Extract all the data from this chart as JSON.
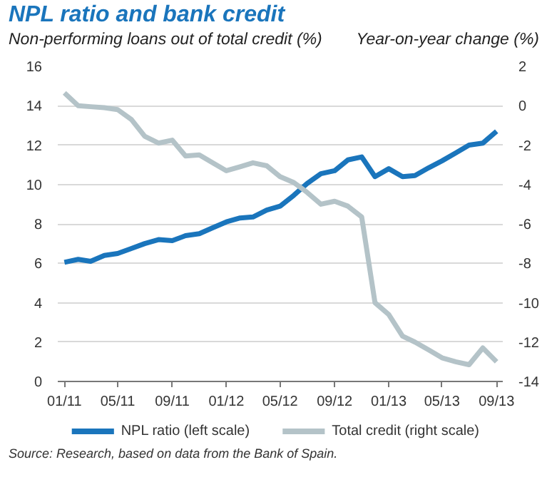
{
  "chart_data": {
    "type": "line",
    "title": "NPL ratio and bank credit",
    "ylabel": "Non-performing loans out of total credit (%)",
    "y2label": "Year-on-year change (%)",
    "x": [
      "2011-01",
      "2011-02",
      "2011-03",
      "2011-04",
      "2011-05",
      "2011-06",
      "2011-07",
      "2011-08",
      "2011-09",
      "2011-10",
      "2011-11",
      "2011-12",
      "2012-01",
      "2012-02",
      "2012-03",
      "2012-04",
      "2012-05",
      "2012-06",
      "2012-07",
      "2012-08",
      "2012-09",
      "2012-10",
      "2012-11",
      "2012-12",
      "2013-01",
      "2013-02",
      "2013-03",
      "2013-04",
      "2013-05",
      "2013-06",
      "2013-07",
      "2013-08",
      "2013-09"
    ],
    "xlim": [
      "2010-12-17",
      "2013-09-15"
    ],
    "xticks": [
      {
        "value": "2011-01",
        "label": "01/11"
      },
      {
        "value": "2011-05",
        "label": "05/11"
      },
      {
        "value": "2011-09",
        "label": "09/11"
      },
      {
        "value": "2012-01",
        "label": "01/12"
      },
      {
        "value": "2012-05",
        "label": "05/12"
      },
      {
        "value": "2012-09",
        "label": "09/12"
      },
      {
        "value": "2013-01",
        "label": "01/13"
      },
      {
        "value": "2013-05",
        "label": "05/13"
      },
      {
        "value": "2013-09",
        "label": "09/13"
      }
    ],
    "ylim": [
      0,
      16
    ],
    "yticks": [
      0,
      2,
      4,
      6,
      8,
      10,
      12,
      14,
      16
    ],
    "y2lim": [
      -14,
      2
    ],
    "y2ticks": [
      -14,
      -12,
      -10,
      -8,
      -6,
      -4,
      -2,
      0,
      2
    ],
    "series": [
      {
        "name": "NPL ratio (left scale)",
        "color": "#1a75bc",
        "values": [
          6.05,
          6.2,
          6.1,
          6.4,
          6.5,
          6.75,
          7.0,
          7.2,
          7.15,
          7.4,
          7.5,
          7.8,
          8.1,
          8.3,
          8.35,
          8.7,
          8.9,
          9.45,
          10.05,
          10.55,
          10.7,
          11.25,
          11.4,
          10.4,
          10.8,
          10.4,
          10.45,
          10.85,
          11.2,
          11.6,
          12.0,
          12.1,
          12.7
        ]
      },
      {
        "name": "Total credit (right scale)",
        "color": "#b4c3c8",
        "axis": "y2",
        "values": [
          0.65,
          0.0,
          -0.05,
          -0.1,
          -0.2,
          -0.7,
          -1.55,
          -1.9,
          -1.75,
          -2.55,
          -2.5,
          -2.9,
          -3.3,
          -3.1,
          -2.9,
          -3.05,
          -3.6,
          -3.9,
          -4.4,
          -5.0,
          -4.85,
          -5.1,
          -5.65,
          -10.0,
          -10.6,
          -11.7,
          -12.0,
          -12.4,
          -12.8,
          -13.0,
          -13.15,
          -12.3,
          -13.0
        ]
      }
    ],
    "grid": "y",
    "legend": "bottom",
    "marker": "none",
    "line_style": "solid",
    "annotations": [
      "Source: Research, based on data from the Bank of Spain."
    ]
  }
}
